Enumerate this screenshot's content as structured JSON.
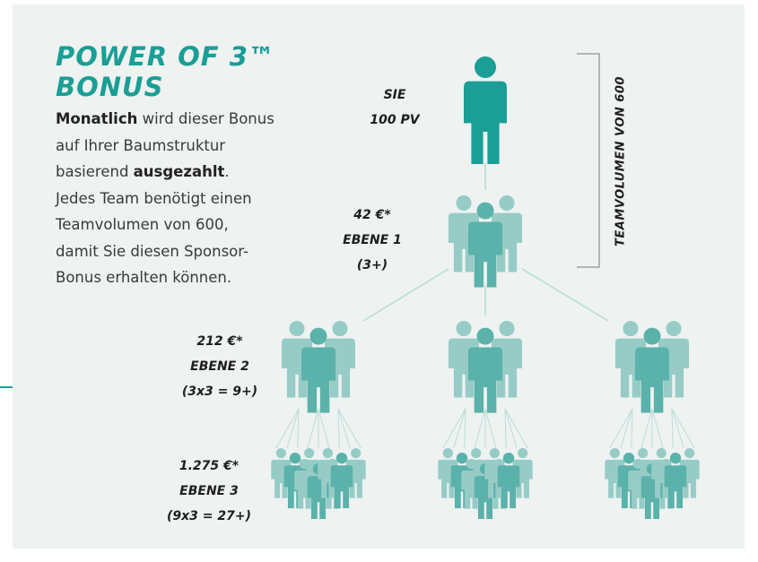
{
  "title": {
    "lines": [
      "POWER OF 3™",
      "BONUS"
    ]
  },
  "description": {
    "lines": [
      [
        {
          "text": "Monatlich",
          "bold": true
        },
        {
          "text": " wird dieser Bonus"
        }
      ],
      [
        {
          "text": "auf Ihrer Baumstruktur"
        }
      ],
      [
        {
          "text": "basierend "
        },
        {
          "text": "ausgezahlt",
          "bold": true
        },
        {
          "text": "."
        }
      ],
      [
        {
          "text": "Jedes Team benötigt einen"
        }
      ],
      [
        {
          "text": "Teamvolumen von 600,"
        }
      ],
      [
        {
          "text": "damit Sie diesen Sponsor-"
        }
      ],
      [
        {
          "text": "Bonus erhalten können."
        }
      ]
    ]
  },
  "levels": [
    {
      "lines": [
        "SIE",
        "100 PV"
      ]
    },
    {
      "lines": [
        "42 €*",
        "EBENE 1",
        "(3+)"
      ]
    },
    {
      "lines": [
        "212 €*",
        "EBENE 2",
        "(3x3 = 9+)"
      ]
    },
    {
      "lines": [
        "1.275 €*",
        "EBENE 3",
        "(9x3 = 27+)"
      ]
    }
  ],
  "side_label": "TEAMVOLUMEN VON 600"
}
